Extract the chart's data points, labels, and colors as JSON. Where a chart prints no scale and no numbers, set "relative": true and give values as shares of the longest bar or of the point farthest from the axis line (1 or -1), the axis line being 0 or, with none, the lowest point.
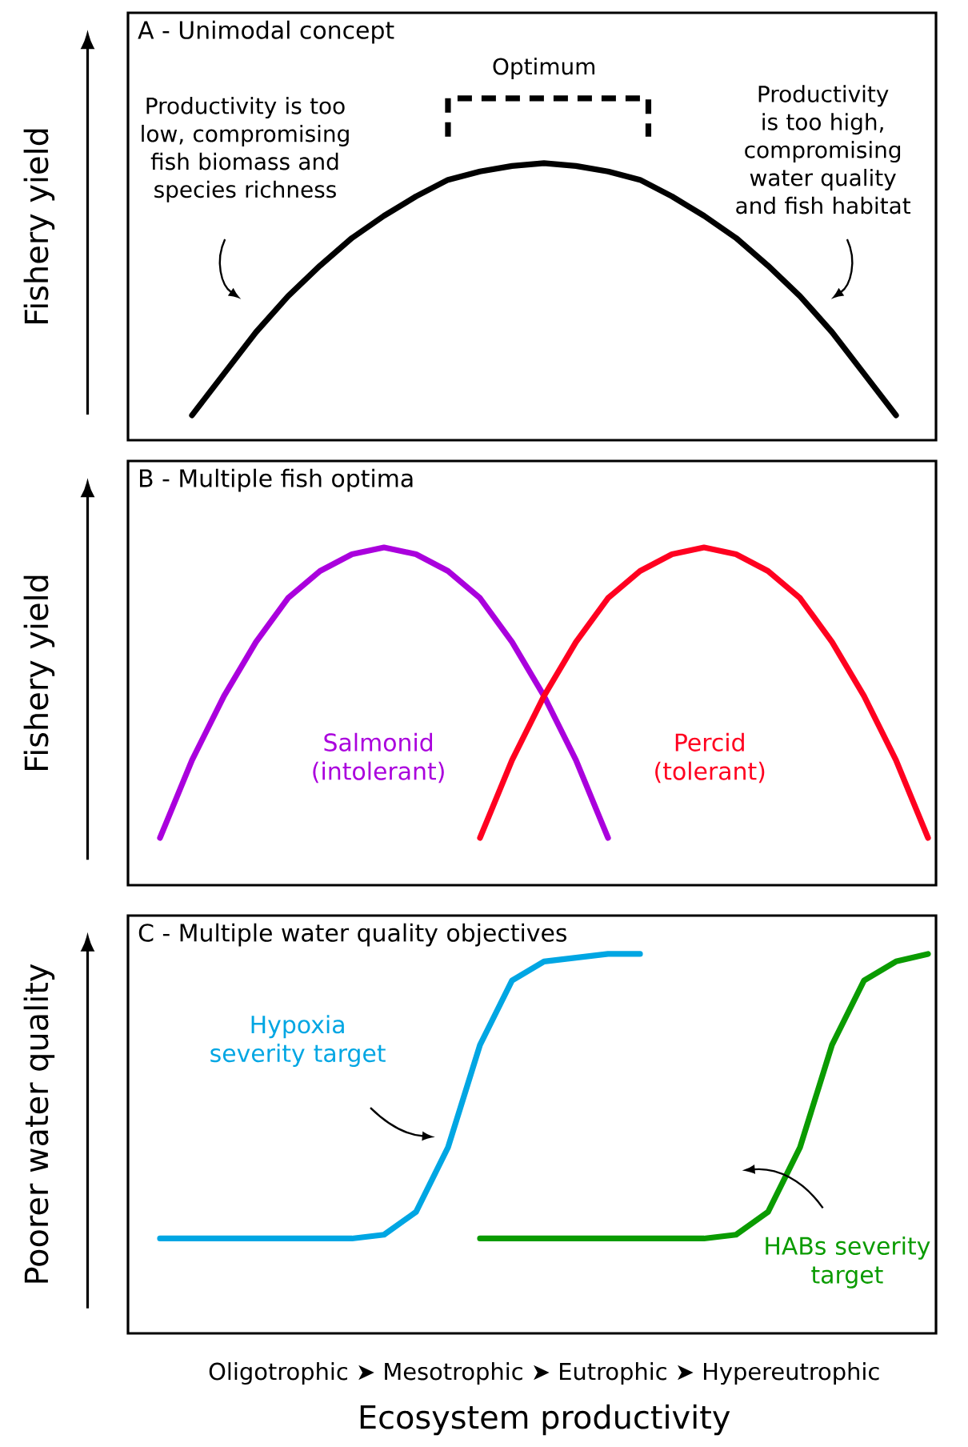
{
  "chart_data": [
    {
      "type": "line",
      "relative": true,
      "title": "A - Unimodal concept",
      "ylabel": "Fishery yield",
      "categories": [
        null,
        null,
        null,
        null,
        null,
        null,
        null,
        null,
        null,
        null,
        null,
        null,
        null,
        null,
        null,
        null,
        null,
        null,
        null,
        null,
        null,
        null,
        null,
        null,
        null
      ],
      "series": [
        {
          "color": "#000000",
          "values": [
            null,
            0.09,
            0.24,
            0.39,
            0.52,
            0.63,
            0.73,
            0.81,
            0.88,
            0.94,
            0.97,
            0.99,
            1,
            0.99,
            0.97,
            0.94,
            0.88,
            0.81,
            0.73,
            0.63,
            0.52,
            0.39,
            0.24,
            0.09,
            null
          ]
        }
      ],
      "annotations": [
        "Optimum",
        "Productivity is too low, compromising fish biomass and species richness",
        "Productivity is too high, compromising water quality and fish habitat"
      ]
    },
    {
      "type": "line",
      "relative": true,
      "title": "B - Multiple fish optima",
      "ylabel": "Fishery yield",
      "categories": [
        null,
        null,
        null,
        null,
        null,
        null,
        null,
        null,
        null,
        null,
        null,
        null,
        null,
        null,
        null,
        null,
        null,
        null,
        null,
        null,
        null,
        null,
        null,
        null,
        null
      ],
      "series": [
        {
          "name": "Salmonid (intolerant)",
          "color": "#aa00dd",
          "values": [
            0.14,
            0.37,
            0.56,
            0.72,
            0.85,
            0.93,
            0.98,
            1,
            0.98,
            0.93,
            0.85,
            0.72,
            0.56,
            0.37,
            0.14,
            null,
            null,
            null,
            null,
            null,
            null,
            null,
            null,
            null,
            null
          ]
        },
        {
          "name": "Percid (tolerant)",
          "color": "#ff0020",
          "values": [
            null,
            null,
            null,
            null,
            null,
            null,
            null,
            null,
            null,
            null,
            0.14,
            0.37,
            0.56,
            0.72,
            0.85,
            0.93,
            0.98,
            1,
            0.98,
            0.93,
            0.85,
            0.72,
            0.56,
            0.37,
            0.14
          ]
        }
      ]
    },
    {
      "type": "line",
      "relative": true,
      "title": "C - Multiple water quality objectives",
      "ylabel": "Poorer water quality",
      "xlabel": "Ecosystem productivity",
      "categories": [
        null,
        null,
        null,
        null,
        null,
        null,
        null,
        null,
        null,
        null,
        null,
        null,
        null,
        null,
        null,
        null,
        null,
        null,
        null,
        null,
        null,
        null,
        null,
        null,
        null
      ],
      "series": [
        {
          "name": "Hypoxia severity target",
          "color": "#00a6e3",
          "values": [
            0.25,
            0.25,
            0.25,
            0.25,
            0.25,
            0.25,
            0.25,
            0.26,
            0.32,
            0.49,
            0.76,
            0.93,
            0.98,
            0.99,
            1,
            1,
            null,
            null,
            null,
            null,
            null,
            null,
            null,
            null,
            null
          ]
        },
        {
          "name": "HABs severity target",
          "color": "#0a9b00",
          "values": [
            null,
            null,
            null,
            null,
            null,
            null,
            null,
            null,
            null,
            null,
            0.25,
            0.25,
            0.25,
            0.25,
            0.25,
            0.25,
            0.25,
            0.25,
            0.26,
            0.32,
            0.49,
            0.76,
            0.93,
            0.98,
            1
          ]
        }
      ],
      "annotations": [
        "Oligotrophic ➤ Mesotrophic ➤ Eutrophic ➤ Hypereutrophic"
      ]
    }
  ]
}
